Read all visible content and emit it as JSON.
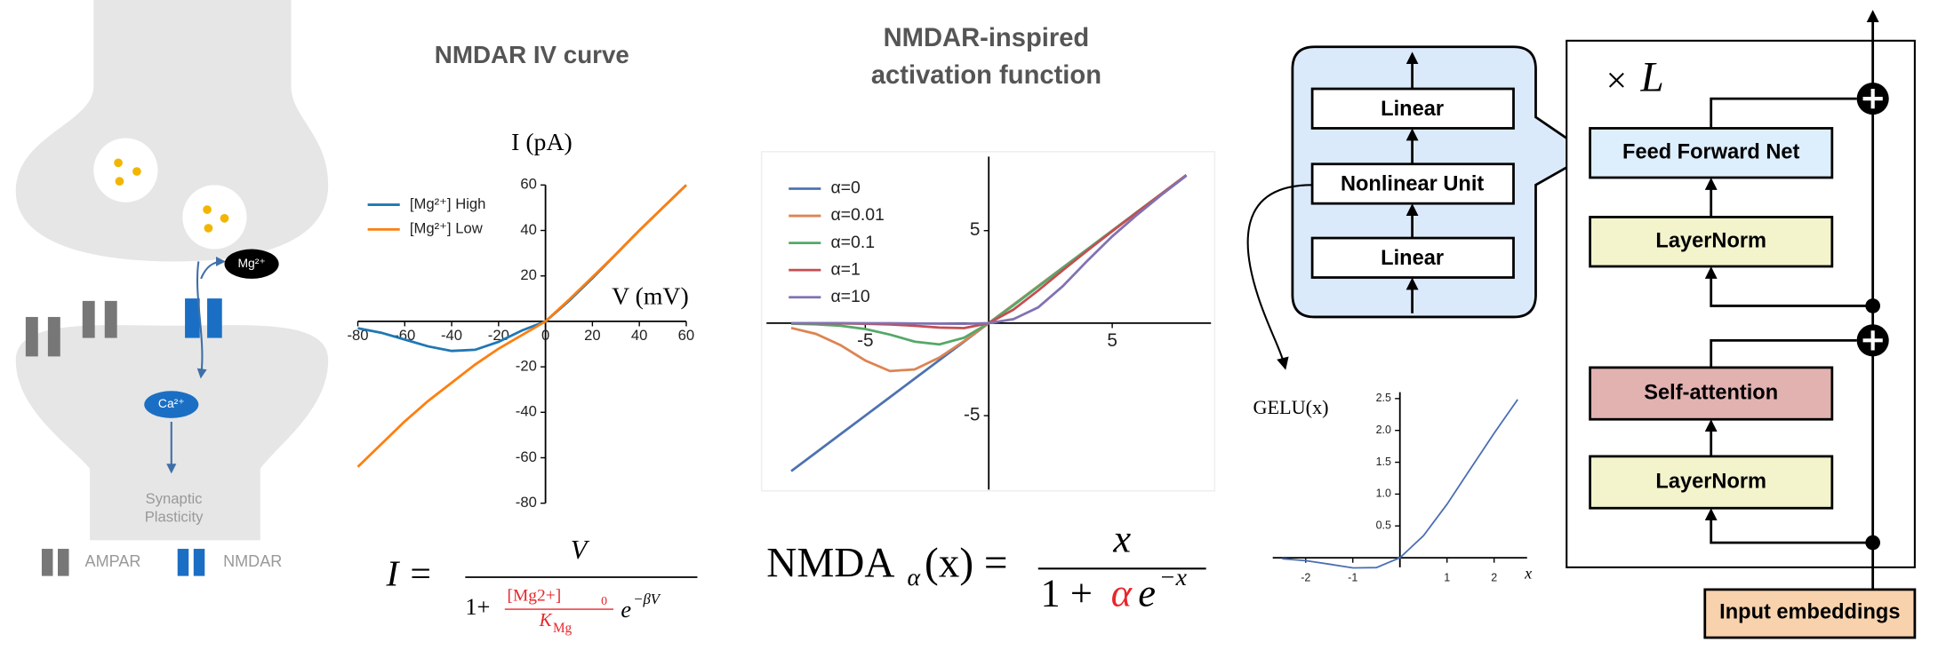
{
  "synapse": {
    "mg": "Mg²⁺",
    "ca": "Ca²⁺",
    "plasticity": [
      "Synaptic",
      "Plasticity"
    ],
    "legend": [
      "AMPAR",
      "NMDAR"
    ]
  },
  "chart_data": [
    {
      "type": "line",
      "title": "NMDAR  IV curve",
      "xlabel": "V (mV)",
      "ylabel": "I (pA)",
      "x": [
        -80,
        -70,
        -60,
        -50,
        -40,
        -30,
        -20,
        -10,
        0,
        10,
        20,
        30,
        40,
        50,
        60
      ],
      "series": [
        {
          "name": "[Mg²⁺] High",
          "color": "#1f77b4",
          "values": [
            -3,
            -5,
            -8,
            -11,
            -13,
            -12.5,
            -9,
            -4,
            0,
            9,
            19,
            29.5,
            40,
            50,
            60
          ]
        },
        {
          "name": "[Mg²⁺] Low",
          "color": "#ff7f0e",
          "values": [
            -64,
            -54,
            -44,
            -35,
            -27,
            -19,
            -12,
            -6,
            0,
            9.5,
            19.5,
            29.5,
            40,
            50,
            60
          ]
        }
      ],
      "xlim": [
        -80,
        60
      ],
      "ylim": [
        -80,
        60
      ],
      "xticks": [
        -80,
        -60,
        -40,
        -20,
        0,
        20,
        40,
        60
      ],
      "yticks": [
        -80,
        -60,
        -40,
        -20,
        20,
        40,
        60
      ],
      "legend": "upper left"
    },
    {
      "type": "line",
      "title": [
        "NMDAR-inspired",
        "activation  function"
      ],
      "x": [
        -8,
        -7,
        -6,
        -5,
        -4,
        -3,
        -2,
        -1,
        0,
        1,
        2,
        3,
        4,
        5,
        6,
        7,
        8
      ],
      "series": [
        {
          "name": "α=0",
          "color": "#4c72b0",
          "values": [
            -8,
            -7,
            -6,
            -5,
            -4,
            -3,
            -2,
            -1,
            0,
            1,
            2,
            3,
            4,
            5,
            6,
            7,
            8
          ]
        },
        {
          "name": "α=0.01",
          "color": "#dd8452",
          "values": [
            -0.26,
            -0.58,
            -1.19,
            -2.02,
            -2.59,
            -2.5,
            -1.86,
            -0.97,
            0,
            1.0,
            2.0,
            3.0,
            4.0,
            5.0,
            6.0,
            7.0,
            8.0
          ]
        },
        {
          "name": "α=0.1",
          "color": "#55a868",
          "values": [
            -0.027,
            -0.063,
            -0.145,
            -0.32,
            -0.62,
            -1.0,
            -1.15,
            -0.79,
            0,
            0.96,
            1.97,
            2.99,
            4.0,
            5.0,
            6.0,
            7.0,
            8.0
          ]
        },
        {
          "name": "α=1",
          "color": "#c44e52",
          "values": [
            -0.003,
            -0.006,
            -0.015,
            -0.033,
            -0.072,
            -0.142,
            -0.238,
            -0.269,
            0,
            0.731,
            1.762,
            2.858,
            3.928,
            4.967,
            5.985,
            6.994,
            7.997
          ]
        },
        {
          "name": "α=10",
          "color": "#8172b3",
          "values": [
            -0.0003,
            -0.0006,
            -0.0015,
            -0.0034,
            -0.0073,
            -0.015,
            -0.027,
            -0.035,
            0,
            0.214,
            0.85,
            2.0,
            3.38,
            4.69,
            5.85,
            6.94,
            7.97
          ]
        }
      ],
      "xlim": [
        -9,
        9
      ],
      "ylim": [
        -9,
        9
      ],
      "xticks": [
        -5,
        5
      ],
      "yticks": [
        -5,
        5
      ],
      "legend": "upper left"
    },
    {
      "type": "line",
      "xlabel": "x",
      "ylabel": "GELU(x)",
      "x": [
        -2.5,
        -2,
        -1.5,
        -1,
        -0.5,
        0,
        0.5,
        1,
        1.5,
        2,
        2.5
      ],
      "series": [
        {
          "color": "#4a6fb5",
          "values": [
            -0.015,
            -0.045,
            -0.1,
            -0.159,
            -0.154,
            0,
            0.346,
            0.841,
            1.4,
            1.955,
            2.485
          ]
        }
      ],
      "xlim": [
        -2.7,
        2.7
      ],
      "ylim": [
        -0.15,
        2.6
      ],
      "xticks": [
        -2,
        -1,
        1,
        2
      ],
      "yticks": [
        0.5,
        {
          "value": 1,
          "label": "1.0"
        },
        1.5,
        {
          "value": 2,
          "label": "2.0"
        },
        2.5
      ]
    }
  ],
  "formulas": {
    "iv": {
      "lhs": "I =",
      "numerator": "V",
      "one": "1+",
      "mg": "[Mg2+]",
      "sub0": "0",
      "k": "K",
      "kmg": "Mg",
      "e": "e",
      "exp": "−βV"
    },
    "nmda": {
      "name": "NMDA",
      "alpha": "α",
      "arg": "(x) =",
      "numerator": "x",
      "one": "1 +",
      "alpha_den": "α",
      "e": "e",
      "exp": "−x"
    }
  },
  "diagram": {
    "inner": [
      "Linear",
      "Nonlinear Unit",
      "Linear"
    ],
    "times": "×",
    "layers": "L",
    "blocks": [
      "Feed Forward Net",
      "LayerNorm",
      "Self-attention",
      "LayerNorm"
    ],
    "input": "Input embeddings"
  }
}
